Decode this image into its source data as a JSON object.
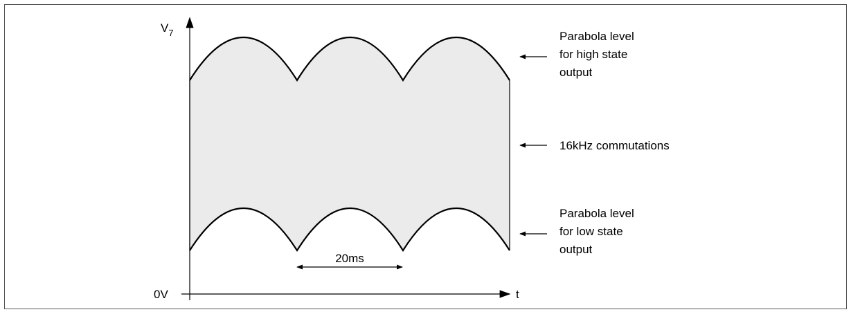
{
  "diagram": {
    "y_axis_label": {
      "base": "V",
      "subscript": "7"
    },
    "origin_label": "0V",
    "x_axis_label": "t",
    "period_label": "20ms",
    "annotations": {
      "high_state": [
        "Parabola level",
        "for high state",
        "output"
      ],
      "commutations": "16kHz commutations",
      "low_state": [
        "Parabola level",
        "for low state",
        "output"
      ]
    },
    "colors": {
      "stroke": "#000000",
      "fill": "#ebebeb",
      "frame": "#555555"
    }
  }
}
